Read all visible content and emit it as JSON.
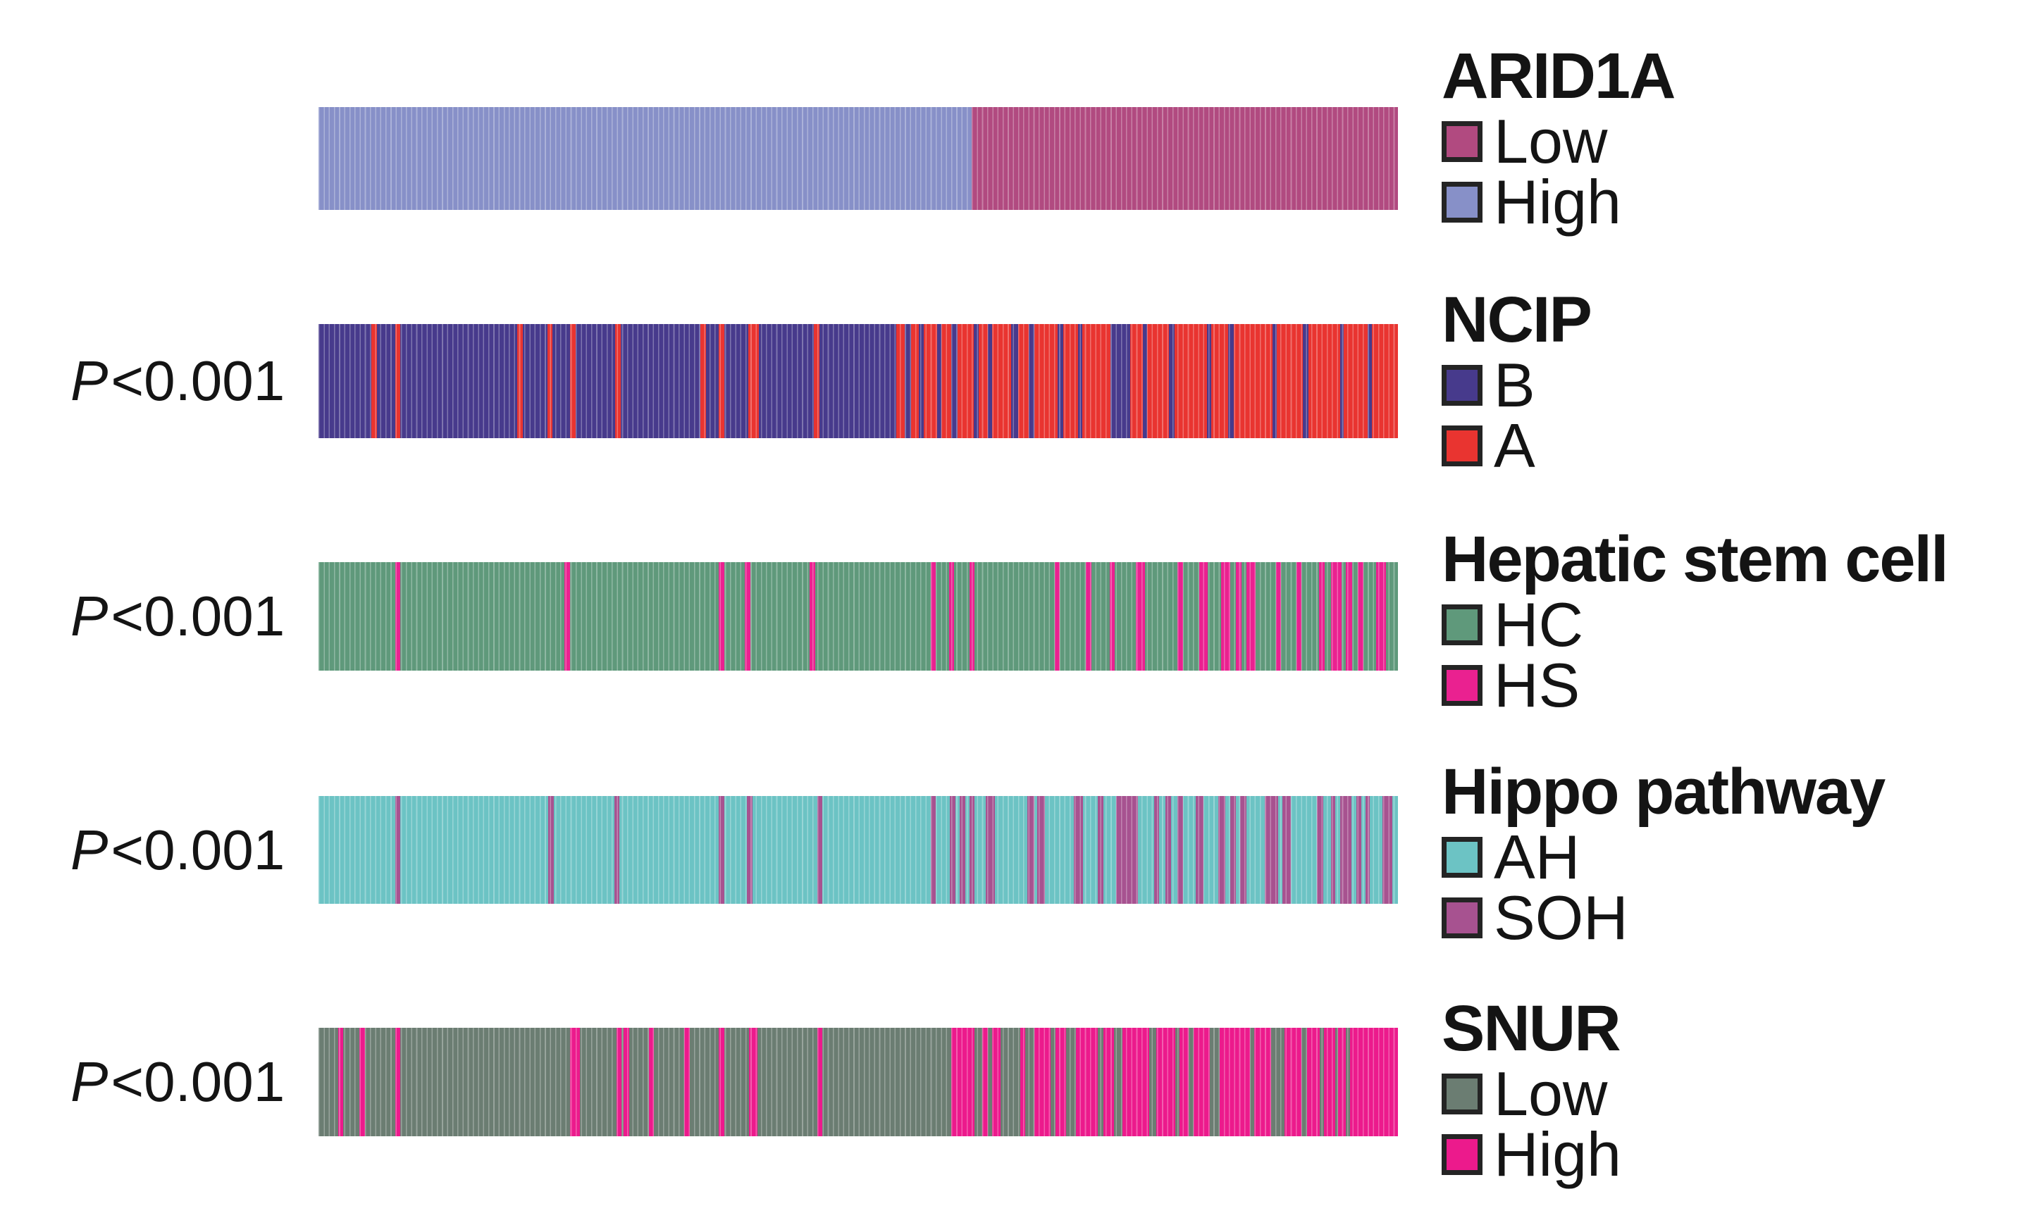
{
  "figure": {
    "background": "#ffffff",
    "text_color": "#141414",
    "description": "Five horizontal categorical sample-track bars (one per gene signature) with legends at right and P-value labels at left"
  },
  "chart_data": {
    "type": "heatmap",
    "subtype": "categorical-sample-strips",
    "orientation": "horizontal",
    "n_tracks": 5,
    "p_value_note": "Four lower tracks each annotated P<0.001 versus ARID1A grouping",
    "tracks": [
      {
        "title": "ARID1A",
        "p": null,
        "colors": {
          "Low": "#b14a80",
          "High": "#8790c8"
        },
        "legend": [
          {
            "label": "Low",
            "color": "#b14a80"
          },
          {
            "label": "High",
            "color": "#8790c8"
          }
        ],
        "segments": [
          [
            "High",
            60.5
          ],
          [
            "Low",
            39.5
          ]
        ]
      },
      {
        "title": "NCIP",
        "p": {
          "sym": "P",
          "val": "<0.001"
        },
        "colors": {
          "B": "#473a8c",
          "A": "#e93430"
        },
        "legend": [
          {
            "label": "B",
            "color": "#473a8c"
          },
          {
            "label": "A",
            "color": "#e93430"
          }
        ],
        "segments": [
          [
            "B",
            4.9
          ],
          [
            "A",
            0.5
          ],
          [
            "B",
            1.7
          ],
          [
            "A",
            0.5
          ],
          [
            "B",
            10.8
          ],
          [
            "A",
            0.5
          ],
          [
            "B",
            2.3
          ],
          [
            "A",
            0.5
          ],
          [
            "B",
            1.6
          ],
          [
            "A",
            0.5
          ],
          [
            "B",
            3.7
          ],
          [
            "A",
            0.5
          ],
          [
            "B",
            7.4
          ],
          [
            "A",
            0.5
          ],
          [
            "B",
            1.2
          ],
          [
            "A",
            0.5
          ],
          [
            "B",
            2.2
          ],
          [
            "A",
            1.0
          ],
          [
            "B",
            5.1
          ],
          [
            "A",
            0.5
          ],
          [
            "B",
            7.1
          ],
          [
            "A",
            0.8
          ],
          [
            "B",
            0.6
          ],
          [
            "A",
            0.7
          ],
          [
            "B",
            0.5
          ],
          [
            "A",
            1.2
          ],
          [
            "B",
            0.4
          ],
          [
            "A",
            0.9
          ],
          [
            "B",
            0.6
          ],
          [
            "A",
            1.5
          ],
          [
            "B",
            0.5
          ],
          [
            "A",
            0.8
          ],
          [
            "B",
            0.4
          ],
          [
            "A",
            1.8
          ],
          [
            "B",
            0.6
          ],
          [
            "A",
            1.0
          ],
          [
            "B",
            0.5
          ],
          [
            "A",
            2.2
          ],
          [
            "B",
            0.5
          ],
          [
            "A",
            1.4
          ],
          [
            "B",
            0.4
          ],
          [
            "A",
            2.6
          ],
          [
            "B",
            1.8
          ],
          [
            "A",
            1.2
          ],
          [
            "B",
            0.4
          ],
          [
            "A",
            2.0
          ],
          [
            "B",
            0.5
          ],
          [
            "A",
            3.0
          ],
          [
            "B",
            0.4
          ],
          [
            "A",
            1.6
          ],
          [
            "B",
            0.5
          ],
          [
            "A",
            3.6
          ],
          [
            "B",
            0.4
          ],
          [
            "A",
            2.4
          ],
          [
            "B",
            0.5
          ],
          [
            "A",
            3.0
          ],
          [
            "B",
            0.3
          ],
          [
            "A",
            2.2
          ],
          [
            "B",
            0.4
          ],
          [
            "A",
            2.4
          ]
        ]
      },
      {
        "title": "Hepatic stem cell",
        "p": {
          "sym": "P",
          "val": "<0.001"
        },
        "colors": {
          "HC": "#5f997b",
          "HS": "#ea2190"
        },
        "legend": [
          {
            "label": "HC",
            "color": "#5f997b"
          },
          {
            "label": "HS",
            "color": "#ea2190"
          }
        ],
        "segments": [
          [
            "HC",
            7.1
          ],
          [
            "HS",
            0.5
          ],
          [
            "HC",
            15.2
          ],
          [
            "HS",
            0.5
          ],
          [
            "HC",
            13.8
          ],
          [
            "HS",
            0.5
          ],
          [
            "HC",
            1.9
          ],
          [
            "HS",
            0.5
          ],
          [
            "HC",
            5.5
          ],
          [
            "HS",
            0.5
          ],
          [
            "HC",
            10.7
          ],
          [
            "HS",
            0.5
          ],
          [
            "HC",
            1.2
          ],
          [
            "HS",
            0.5
          ],
          [
            "HC",
            1.4
          ],
          [
            "HS",
            0.5
          ],
          [
            "HC",
            7.4
          ],
          [
            "HS",
            0.5
          ],
          [
            "HC",
            2.4
          ],
          [
            "HS",
            0.5
          ],
          [
            "HC",
            1.7
          ],
          [
            "HS",
            0.5
          ],
          [
            "HC",
            1.9
          ],
          [
            "HS",
            0.9
          ],
          [
            "HC",
            3.0
          ],
          [
            "HS",
            0.5
          ],
          [
            "HC",
            1.5
          ],
          [
            "HS",
            0.8
          ],
          [
            "HC",
            1.2
          ],
          [
            "HS",
            0.9
          ],
          [
            "HC",
            0.5
          ],
          [
            "HS",
            0.5
          ],
          [
            "HC",
            0.5
          ],
          [
            "HS",
            0.8
          ],
          [
            "HC",
            1.9
          ],
          [
            "HS",
            0.5
          ],
          [
            "HC",
            1.4
          ],
          [
            "HS",
            0.5
          ],
          [
            "HC",
            1.6
          ],
          [
            "HS",
            0.5
          ],
          [
            "HC",
            0.6
          ],
          [
            "HS",
            1.0
          ],
          [
            "HC",
            0.4
          ],
          [
            "HS",
            0.6
          ],
          [
            "HC",
            0.5
          ],
          [
            "HS",
            0.5
          ],
          [
            "HC",
            1.2
          ],
          [
            "HS",
            0.9
          ],
          [
            "HC",
            1.1
          ]
        ]
      },
      {
        "title": "Hippo pathway",
        "p": {
          "sym": "P",
          "val": "<0.001"
        },
        "colors": {
          "AH": "#6cc3c4",
          "SOH": "#a75290"
        },
        "legend": [
          {
            "label": "AH",
            "color": "#6cc3c4"
          },
          {
            "label": "SOH",
            "color": "#a75290"
          }
        ],
        "segments": [
          [
            "AH",
            7.1
          ],
          [
            "SOH",
            0.5
          ],
          [
            "AH",
            13.7
          ],
          [
            "SOH",
            0.5
          ],
          [
            "AH",
            5.6
          ],
          [
            "SOH",
            0.5
          ],
          [
            "AH",
            9.2
          ],
          [
            "SOH",
            0.5
          ],
          [
            "AH",
            2.1
          ],
          [
            "SOH",
            0.5
          ],
          [
            "AH",
            6.0
          ],
          [
            "SOH",
            0.5
          ],
          [
            "AH",
            10.0
          ],
          [
            "SOH",
            0.5
          ],
          [
            "AH",
            1.3
          ],
          [
            "SOH",
            0.5
          ],
          [
            "AH",
            0.4
          ],
          [
            "SOH",
            0.5
          ],
          [
            "AH",
            0.4
          ],
          [
            "SOH",
            0.5
          ],
          [
            "AH",
            1.0
          ],
          [
            "SOH",
            0.9
          ],
          [
            "AH",
            3.0
          ],
          [
            "SOH",
            0.6
          ],
          [
            "AH",
            0.3
          ],
          [
            "SOH",
            0.7
          ],
          [
            "AH",
            2.7
          ],
          [
            "SOH",
            0.8
          ],
          [
            "AH",
            1.4
          ],
          [
            "SOH",
            0.5
          ],
          [
            "AH",
            1.2
          ],
          [
            "SOH",
            2.0
          ],
          [
            "AH",
            1.5
          ],
          [
            "SOH",
            0.5
          ],
          [
            "AH",
            0.6
          ],
          [
            "SOH",
            0.5
          ],
          [
            "AH",
            0.6
          ],
          [
            "SOH",
            0.5
          ],
          [
            "AH",
            1.2
          ],
          [
            "SOH",
            0.7
          ],
          [
            "AH",
            1.4
          ],
          [
            "SOH",
            0.6
          ],
          [
            "AH",
            0.5
          ],
          [
            "SOH",
            0.5
          ],
          [
            "AH",
            0.4
          ],
          [
            "SOH",
            0.6
          ],
          [
            "AH",
            1.7
          ],
          [
            "SOH",
            1.2
          ],
          [
            "AH",
            0.4
          ],
          [
            "SOH",
            0.8
          ],
          [
            "AH",
            2.4
          ],
          [
            "SOH",
            0.6
          ],
          [
            "AH",
            0.7
          ],
          [
            "SOH",
            0.4
          ],
          [
            "AH",
            0.5
          ],
          [
            "SOH",
            1.0
          ],
          [
            "AH",
            0.5
          ],
          [
            "SOH",
            0.4
          ],
          [
            "AH",
            0.4
          ],
          [
            "SOH",
            0.4
          ],
          [
            "AH",
            1.2
          ],
          [
            "SOH",
            0.9
          ],
          [
            "AH",
            0.5
          ]
        ]
      },
      {
        "title": "SNUR",
        "p": {
          "sym": "P",
          "val": "<0.001"
        },
        "colors": {
          "Low": "#6b7d72",
          "High": "#ec1a8c"
        },
        "legend": [
          {
            "label": "Low",
            "color": "#6b7d72"
          },
          {
            "label": "High",
            "color": "#ec1a8c"
          }
        ],
        "segments": [
          [
            "Low",
            1.8
          ],
          [
            "High",
            0.5
          ],
          [
            "Low",
            1.5
          ],
          [
            "High",
            0.5
          ],
          [
            "Low",
            2.8
          ],
          [
            "High",
            0.5
          ],
          [
            "Low",
            15.7
          ],
          [
            "High",
            0.9
          ],
          [
            "Low",
            3.4
          ],
          [
            "High",
            0.5
          ],
          [
            "Low",
            0.2
          ],
          [
            "High",
            0.5
          ],
          [
            "Low",
            1.8
          ],
          [
            "High",
            0.5
          ],
          [
            "Low",
            2.8
          ],
          [
            "High",
            0.5
          ],
          [
            "Low",
            2.7
          ],
          [
            "High",
            0.5
          ],
          [
            "Low",
            2.3
          ],
          [
            "High",
            0.8
          ],
          [
            "Low",
            5.5
          ],
          [
            "High",
            0.5
          ],
          [
            "Low",
            11.9
          ],
          [
            "High",
            2.2
          ],
          [
            "Low",
            0.7
          ],
          [
            "High",
            0.5
          ],
          [
            "Low",
            0.4
          ],
          [
            "High",
            0.8
          ],
          [
            "Low",
            1.8
          ],
          [
            "High",
            0.5
          ],
          [
            "Low",
            0.8
          ],
          [
            "High",
            1.5
          ],
          [
            "Low",
            0.5
          ],
          [
            "High",
            1.0
          ],
          [
            "Low",
            0.9
          ],
          [
            "High",
            2.0
          ],
          [
            "Low",
            0.5
          ],
          [
            "High",
            1.0
          ],
          [
            "Low",
            0.8
          ],
          [
            "High",
            2.5
          ],
          [
            "Low",
            0.6
          ],
          [
            "High",
            1.8
          ],
          [
            "Low",
            0.4
          ],
          [
            "High",
            0.8
          ],
          [
            "Low",
            0.5
          ],
          [
            "High",
            1.5
          ],
          [
            "Low",
            0.9
          ],
          [
            "High",
            2.8
          ],
          [
            "Low",
            0.4
          ],
          [
            "High",
            1.6
          ],
          [
            "Low",
            1.2
          ],
          [
            "High",
            1.6
          ],
          [
            "Low",
            0.5
          ],
          [
            "High",
            1.2
          ],
          [
            "Low",
            0.4
          ],
          [
            "High",
            1.0
          ],
          [
            "Low",
            0.3
          ],
          [
            "High",
            0.7
          ],
          [
            "Low",
            0.4
          ],
          [
            "High",
            4.4
          ]
        ]
      }
    ]
  }
}
